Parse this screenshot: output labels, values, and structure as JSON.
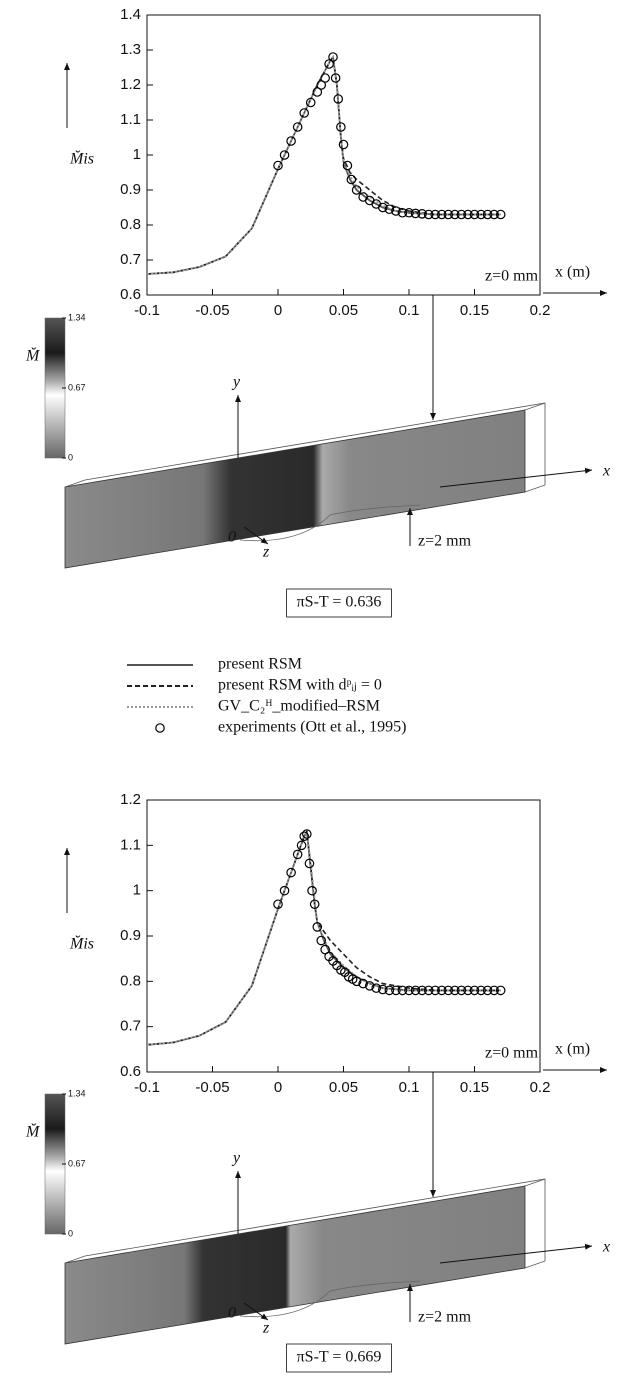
{
  "chart_data": [
    {
      "type": "line",
      "y_label": "M̆is",
      "x_label": "x (m)",
      "annotation": "z=0 mm",
      "xlim": [
        -0.1,
        0.2
      ],
      "xticks": [
        -0.1,
        -0.05,
        0,
        0.05,
        0.1,
        0.15,
        0.2
      ],
      "ylim": [
        0.6,
        1.4
      ],
      "yticks": [
        0.6,
        0.7,
        0.8,
        0.9,
        1,
        1.1,
        1.2,
        1.3,
        1.4
      ],
      "series": [
        {
          "name": "present RSM",
          "style": "solid",
          "color": "#555555",
          "x": [
            -0.1,
            -0.08,
            -0.06,
            -0.04,
            -0.02,
            0,
            0.01,
            0.02,
            0.03,
            0.04,
            0.042,
            0.045,
            0.048,
            0.05,
            0.055,
            0.06,
            0.07,
            0.08,
            0.09,
            0.1,
            0.12,
            0.14,
            0.17
          ],
          "values": [
            0.66,
            0.665,
            0.68,
            0.71,
            0.79,
            0.96,
            1.04,
            1.12,
            1.2,
            1.27,
            1.28,
            1.2,
            1.05,
            0.98,
            0.93,
            0.9,
            0.87,
            0.85,
            0.84,
            0.835,
            0.83,
            0.83,
            0.83
          ]
        },
        {
          "name": "present RSM with dᵖᵢⱼ = 0",
          "style": "dashed",
          "color": "#222222",
          "x": [
            -0.1,
            -0.08,
            -0.06,
            -0.04,
            -0.02,
            0,
            0.01,
            0.02,
            0.03,
            0.04,
            0.042,
            0.045,
            0.048,
            0.05,
            0.055,
            0.06,
            0.07,
            0.08,
            0.09,
            0.1,
            0.12,
            0.14,
            0.17
          ],
          "values": [
            0.66,
            0.665,
            0.68,
            0.71,
            0.79,
            0.96,
            1.04,
            1.12,
            1.2,
            1.27,
            1.28,
            1.2,
            1.05,
            0.99,
            0.95,
            0.93,
            0.9,
            0.87,
            0.85,
            0.84,
            0.83,
            0.83,
            0.83
          ]
        },
        {
          "name": "GV_C₂ᴴ_modified–RSM",
          "style": "dotted",
          "color": "#999999",
          "x": [
            -0.1,
            -0.08,
            -0.06,
            -0.04,
            -0.02,
            0,
            0.01,
            0.02,
            0.03,
            0.04,
            0.042,
            0.045,
            0.048,
            0.05,
            0.055,
            0.06,
            0.07,
            0.08,
            0.09,
            0.1,
            0.12,
            0.14,
            0.17
          ],
          "values": [
            0.66,
            0.665,
            0.68,
            0.71,
            0.79,
            0.96,
            1.04,
            1.12,
            1.2,
            1.27,
            1.28,
            1.2,
            1.05,
            0.98,
            0.94,
            0.91,
            0.88,
            0.855,
            0.84,
            0.835,
            0.83,
            0.83,
            0.83
          ]
        },
        {
          "name": "experiments (Ott et al., 1995)",
          "style": "markers",
          "color": "#000000",
          "x": [
            0,
            0.005,
            0.01,
            0.015,
            0.02,
            0.025,
            0.03,
            0.033,
            0.036,
            0.039,
            0.042,
            0.044,
            0.046,
            0.048,
            0.05,
            0.053,
            0.056,
            0.06,
            0.065,
            0.07,
            0.075,
            0.08,
            0.085,
            0.09,
            0.095,
            0.1,
            0.105,
            0.11,
            0.115,
            0.12,
            0.125,
            0.13,
            0.135,
            0.14,
            0.145,
            0.15,
            0.155,
            0.16,
            0.165,
            0.17
          ],
          "values": [
            0.97,
            1.0,
            1.04,
            1.08,
            1.12,
            1.15,
            1.18,
            1.2,
            1.22,
            1.26,
            1.28,
            1.22,
            1.16,
            1.08,
            1.03,
            0.97,
            0.93,
            0.9,
            0.88,
            0.87,
            0.86,
            0.85,
            0.845,
            0.84,
            0.835,
            0.835,
            0.833,
            0.832,
            0.83,
            0.83,
            0.83,
            0.83,
            0.83,
            0.83,
            0.83,
            0.83,
            0.83,
            0.83,
            0.83,
            0.83
          ]
        }
      ],
      "colorbar": {
        "label": "M̆",
        "lim": [
          0,
          1.34
        ],
        "ticks": [
          0,
          0.67,
          1.34
        ]
      },
      "axes3d_labels": [
        "y",
        "x",
        "z",
        "0"
      ],
      "annotation_3d": "z=2 mm",
      "pi_label": "πS-T = 0.636"
    },
    {
      "type": "line",
      "y_label": "M̆is",
      "x_label": "x (m)",
      "annotation": "z=0 mm",
      "xlim": [
        -0.1,
        0.2
      ],
      "xticks": [
        -0.1,
        -0.05,
        0,
        0.05,
        0.1,
        0.15,
        0.2
      ],
      "ylim": [
        0.6,
        1.2
      ],
      "yticks": [
        0.6,
        0.7,
        0.8,
        0.9,
        1,
        1.1,
        1.2
      ],
      "series": [
        {
          "style": "solid",
          "color": "#555555",
          "x": [
            -0.1,
            -0.08,
            -0.06,
            -0.04,
            -0.02,
            0,
            0.005,
            0.01,
            0.015,
            0.02,
            0.022,
            0.025,
            0.028,
            0.03,
            0.035,
            0.04,
            0.05,
            0.06,
            0.07,
            0.08,
            0.1,
            0.12,
            0.17
          ],
          "values": [
            0.66,
            0.665,
            0.68,
            0.71,
            0.79,
            0.96,
            1.0,
            1.04,
            1.08,
            1.12,
            1.13,
            1.05,
            0.97,
            0.93,
            0.89,
            0.86,
            0.83,
            0.81,
            0.795,
            0.785,
            0.78,
            0.78,
            0.78
          ]
        },
        {
          "style": "dashed",
          "color": "#222222",
          "x": [
            -0.1,
            -0.08,
            -0.06,
            -0.04,
            -0.02,
            0,
            0.005,
            0.01,
            0.015,
            0.02,
            0.022,
            0.025,
            0.028,
            0.03,
            0.035,
            0.04,
            0.05,
            0.06,
            0.07,
            0.08,
            0.1,
            0.12,
            0.17
          ],
          "values": [
            0.66,
            0.665,
            0.68,
            0.71,
            0.79,
            0.96,
            1.0,
            1.04,
            1.08,
            1.12,
            1.13,
            1.05,
            0.97,
            0.93,
            0.91,
            0.89,
            0.86,
            0.83,
            0.81,
            0.795,
            0.785,
            0.78,
            0.78
          ]
        },
        {
          "style": "dotted",
          "color": "#999999",
          "x": [
            -0.1,
            -0.08,
            -0.06,
            -0.04,
            -0.02,
            0,
            0.005,
            0.01,
            0.015,
            0.02,
            0.022,
            0.025,
            0.028,
            0.03,
            0.035,
            0.04,
            0.05,
            0.06,
            0.07,
            0.08,
            0.1,
            0.12,
            0.17
          ],
          "values": [
            0.66,
            0.665,
            0.68,
            0.71,
            0.79,
            0.96,
            1.0,
            1.04,
            1.08,
            1.12,
            1.13,
            1.06,
            0.98,
            0.93,
            0.895,
            0.865,
            0.835,
            0.81,
            0.795,
            0.785,
            0.78,
            0.78,
            0.78
          ]
        },
        {
          "style": "markers",
          "color": "#000000",
          "x": [
            0,
            0.005,
            0.01,
            0.015,
            0.018,
            0.02,
            0.022,
            0.024,
            0.026,
            0.028,
            0.03,
            0.033,
            0.036,
            0.039,
            0.042,
            0.045,
            0.048,
            0.051,
            0.054,
            0.057,
            0.06,
            0.065,
            0.07,
            0.075,
            0.08,
            0.085,
            0.09,
            0.095,
            0.1,
            0.105,
            0.11,
            0.115,
            0.12,
            0.125,
            0.13,
            0.135,
            0.14,
            0.145,
            0.15,
            0.155,
            0.16,
            0.165,
            0.17
          ],
          "values": [
            0.97,
            1.0,
            1.04,
            1.08,
            1.1,
            1.12,
            1.125,
            1.06,
            1.0,
            0.97,
            0.92,
            0.89,
            0.87,
            0.855,
            0.845,
            0.835,
            0.825,
            0.82,
            0.81,
            0.805,
            0.8,
            0.795,
            0.79,
            0.785,
            0.782,
            0.78,
            0.78,
            0.78,
            0.78,
            0.78,
            0.78,
            0.78,
            0.78,
            0.78,
            0.78,
            0.78,
            0.78,
            0.78,
            0.78,
            0.78,
            0.78,
            0.78,
            0.78
          ]
        }
      ],
      "colorbar": {
        "label": "M̆",
        "lim": [
          0,
          1.34
        ],
        "ticks": [
          0,
          0.67,
          1.34
        ]
      },
      "axes3d_labels": [
        "y",
        "x",
        "z",
        "0"
      ],
      "annotation_3d": "z=2 mm",
      "pi_label": "πS-T = 0.669"
    }
  ]
}
